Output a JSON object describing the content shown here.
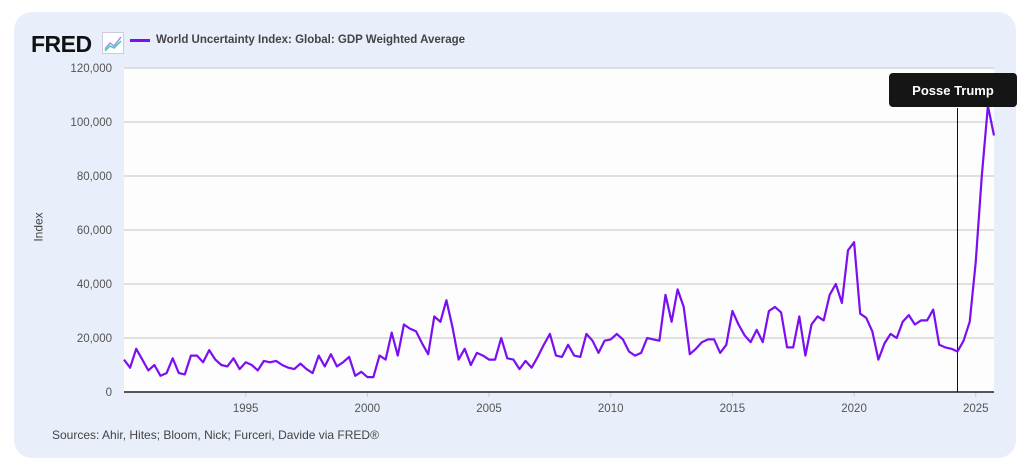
{
  "logo_text": "FRED",
  "chart_data": {
    "type": "line",
    "title": "",
    "legend": [
      "World Uncertainty Index: Global: GDP Weighted Average"
    ],
    "legend_placement": "top-left",
    "xlabel": "",
    "ylabel": "Index",
    "xlim": [
      1990,
      2025.75
    ],
    "ylim": [
      0,
      120000
    ],
    "grid": true,
    "x_ticks": [
      {
        "value": 1995,
        "label": "1995"
      },
      {
        "value": 2000,
        "label": "2000"
      },
      {
        "value": 2005,
        "label": "2005"
      },
      {
        "value": 2010,
        "label": "2010"
      },
      {
        "value": 2015,
        "label": "2015"
      },
      {
        "value": 2020,
        "label": "2020"
      },
      {
        "value": 2025,
        "label": "2025"
      }
    ],
    "y_ticks": [
      {
        "value": 0,
        "label": "0"
      },
      {
        "value": 20000,
        "label": "20,000"
      },
      {
        "value": 40000,
        "label": "40,000"
      },
      {
        "value": 60000,
        "label": "60,000"
      },
      {
        "value": 80000,
        "label": "80,000"
      },
      {
        "value": 100000,
        "label": "100,000"
      },
      {
        "value": 120000,
        "label": "120,000"
      }
    ],
    "series": [
      {
        "name": "World Uncertainty Index: Global: GDP Weighted Average",
        "color": "#7b0ff0",
        "x_start": 1990,
        "x_step": 0.25,
        "values": [
          12000,
          9000,
          16000,
          12000,
          8000,
          10000,
          6000,
          7000,
          12500,
          7000,
          6500,
          13500,
          13500,
          11000,
          15500,
          12000,
          10000,
          9500,
          12500,
          8500,
          11000,
          10000,
          8000,
          11500,
          11000,
          11500,
          10000,
          9000,
          8500,
          10500,
          8500,
          7000,
          13500,
          9500,
          14000,
          9500,
          11000,
          13000,
          6000,
          7500,
          5500,
          5500,
          13500,
          12000,
          22000,
          13500,
          25000,
          23500,
          22500,
          18000,
          14000,
          28000,
          26000,
          34000,
          24000,
          12000,
          16000,
          10000,
          14500,
          13500,
          12000,
          12000,
          20000,
          12500,
          12000,
          8500,
          11500,
          9000,
          13000,
          17500,
          21500,
          13500,
          13000,
          17500,
          13500,
          13000,
          21500,
          19000,
          14500,
          19000,
          19500,
          21500,
          19500,
          15000,
          13500,
          14500,
          20000,
          19500,
          19000,
          36000,
          26000,
          38000,
          31500,
          14000,
          16000,
          18500,
          19500,
          19500,
          14500,
          17500,
          30000,
          25000,
          21000,
          18500,
          23000,
          18500,
          30000,
          31500,
          29500,
          16500,
          16500,
          28000,
          13500,
          25000,
          28000,
          26500,
          36000,
          40000,
          33000,
          52500,
          55500,
          29000,
          27500,
          22500,
          12000,
          18000,
          21500,
          20000,
          26000,
          28500,
          25000,
          26500,
          26500,
          30500,
          17500,
          16500,
          16000,
          15000,
          19000,
          26000,
          48000,
          80000,
          106000,
          95000
        ]
      }
    ],
    "annotations": [
      {
        "x": 2024.25,
        "label": "Posse Trump"
      }
    ]
  },
  "sources": "Sources: Ahir, Hites; Bloom, Nick; Furceri, Davide via FRED®"
}
